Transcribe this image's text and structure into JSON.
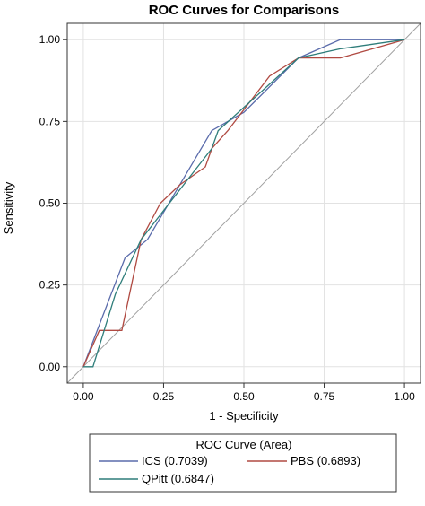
{
  "chart_data": {
    "type": "line",
    "title": "ROC Curves for Comparisons",
    "xlabel": "1 - Specificity",
    "ylabel": "Sensitivity",
    "xlim": [
      -0.05,
      1.05
    ],
    "ylim": [
      -0.05,
      1.05
    ],
    "x_ticks": [
      "0.00",
      "0.25",
      "0.50",
      "0.75",
      "1.00"
    ],
    "y_ticks": [
      "0.00",
      "0.25",
      "0.50",
      "0.75",
      "1.00"
    ],
    "tick_values": [
      0,
      0.25,
      0.5,
      0.75,
      1.0
    ],
    "grid": true,
    "reference_line": true,
    "legend": {
      "title": "ROC Curve (Area)",
      "placement": "bottom"
    },
    "series": [
      {
        "name": "ICS",
        "area": "(0.7039)",
        "color": "#5a6bab",
        "points": [
          [
            0,
            0
          ],
          [
            0.13,
            0.333
          ],
          [
            0.2,
            0.389
          ],
          [
            0.4,
            0.722
          ],
          [
            0.5,
            0.778
          ],
          [
            0.67,
            0.944
          ],
          [
            0.8,
            1.0
          ],
          [
            1.0,
            1.0
          ]
        ]
      },
      {
        "name": "PBS",
        "area": "(0.6893)",
        "color": "#b04a42",
        "points": [
          [
            0,
            0
          ],
          [
            0.05,
            0.111
          ],
          [
            0.12,
            0.111
          ],
          [
            0.18,
            0.389
          ],
          [
            0.24,
            0.5
          ],
          [
            0.3,
            0.556
          ],
          [
            0.38,
            0.611
          ],
          [
            0.4,
            0.667
          ],
          [
            0.45,
            0.722
          ],
          [
            0.58,
            0.889
          ],
          [
            0.67,
            0.944
          ],
          [
            0.75,
            0.944
          ],
          [
            0.8,
            0.944
          ],
          [
            1.0,
            1.0
          ]
        ]
      },
      {
        "name": "QPitt",
        "area": "(0.6847)",
        "color": "#2e7d7a",
        "points": [
          [
            0,
            0
          ],
          [
            0.03,
            0
          ],
          [
            0.1,
            0.222
          ],
          [
            0.18,
            0.389
          ],
          [
            0.4,
            0.667
          ],
          [
            0.42,
            0.722
          ],
          [
            0.67,
            0.944
          ],
          [
            0.8,
            0.972
          ],
          [
            1.0,
            1.0
          ]
        ]
      }
    ]
  }
}
